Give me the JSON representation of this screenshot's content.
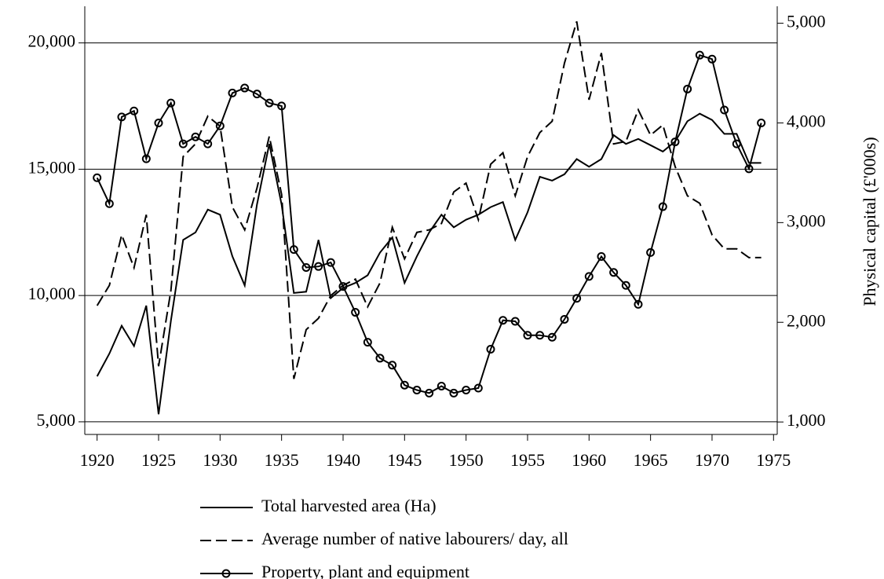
{
  "chart_data": {
    "type": "line",
    "y2label": "Physical capital (£'000s)",
    "x": [
      1920,
      1921,
      1922,
      1923,
      1924,
      1925,
      1926,
      1927,
      1928,
      1929,
      1930,
      1931,
      1932,
      1933,
      1934,
      1935,
      1936,
      1937,
      1938,
      1939,
      1940,
      1941,
      1942,
      1943,
      1944,
      1945,
      1946,
      1947,
      1948,
      1949,
      1950,
      1951,
      1952,
      1953,
      1954,
      1955,
      1956,
      1957,
      1958,
      1959,
      1960,
      1961,
      1962,
      1963,
      1964,
      1965,
      1966,
      1967,
      1968,
      1969,
      1970,
      1971,
      1972,
      1973,
      1974
    ],
    "xlim": [
      1919,
      1975.3
    ],
    "xticks": [
      1920,
      1925,
      1930,
      1935,
      1940,
      1945,
      1950,
      1955,
      1960,
      1965,
      1970,
      1975
    ],
    "ylim": [
      4500,
      21450
    ],
    "yticks": [
      {
        "value": 5000,
        "label": "5,000"
      },
      {
        "value": 10000,
        "label": "10,000"
      },
      {
        "value": 15000,
        "label": "15,000"
      },
      {
        "value": 20000,
        "label": "20,000"
      }
    ],
    "y2lim": [
      875,
      5170
    ],
    "y2ticks": [
      {
        "value": 1000,
        "label": "1,000"
      },
      {
        "value": 2000,
        "label": "2,000"
      },
      {
        "value": 3000,
        "label": "3,000"
      },
      {
        "value": 4000,
        "label": "4,000"
      },
      {
        "value": 5000,
        "label": "5,000"
      }
    ],
    "grid": true,
    "legend": "bottom",
    "series": [
      {
        "name": "Total harvested area (Ha)",
        "color": "#000000",
        "line_style": "solid",
        "axis": "y",
        "values": [
          6800,
          7700,
          8800,
          8000,
          9600,
          5300,
          9000,
          12200,
          12500,
          13400,
          13200,
          11550,
          10400,
          13600,
          16000,
          13600,
          10100,
          10150,
          12200,
          9900,
          10300,
          10500,
          10800,
          11700,
          12300,
          10500,
          11550,
          12500,
          13200,
          12700,
          13000,
          13200,
          13500,
          13700,
          12200,
          13300,
          14700,
          14550,
          14800,
          15400,
          15100,
          15400,
          16350,
          16000,
          16200,
          15950,
          15700,
          16100,
          16900,
          17200,
          16950,
          16400,
          16400,
          15250,
          15250
        ]
      },
      {
        "name": "Average number of native labourers/ day, all",
        "color": "#000000",
        "line_style": "dashed",
        "axis": "y",
        "values": [
          9600,
          10400,
          12400,
          11100,
          13200,
          7200,
          10200,
          15500,
          16000,
          17100,
          16700,
          13500,
          12600,
          14250,
          16300,
          14000,
          6700,
          8650,
          9100,
          10000,
          10400,
          10650,
          9550,
          10500,
          12700,
          11450,
          12500,
          12600,
          12850,
          14100,
          14450,
          13000,
          15200,
          15650,
          13950,
          15500,
          16450,
          16900,
          19200,
          20850,
          17750,
          19600,
          16000,
          16100,
          17350,
          16350,
          16750,
          15100,
          13950,
          13650,
          12400,
          11850,
          11850,
          11500,
          11500
        ]
      },
      {
        "name": "Property, plant and equipment",
        "color": "#000000",
        "line_style": "solid",
        "marker": "circle",
        "axis": "y2",
        "values": [
          3450,
          3190,
          4060,
          4120,
          3640,
          4000,
          4200,
          3790,
          3860,
          3790,
          3970,
          4300,
          4350,
          4290,
          4200,
          4170,
          2730,
          2550,
          2560,
          2600,
          2360,
          2100,
          1800,
          1640,
          1570,
          1370,
          1320,
          1290,
          1360,
          1290,
          1320,
          1340,
          1730,
          2020,
          2010,
          1870,
          1870,
          1850,
          2030,
          2240,
          2460,
          2660,
          2500,
          2370,
          2180,
          2700,
          3160,
          3810,
          4340,
          4680,
          4640,
          4130,
          3790,
          3540,
          4000
        ]
      }
    ]
  }
}
